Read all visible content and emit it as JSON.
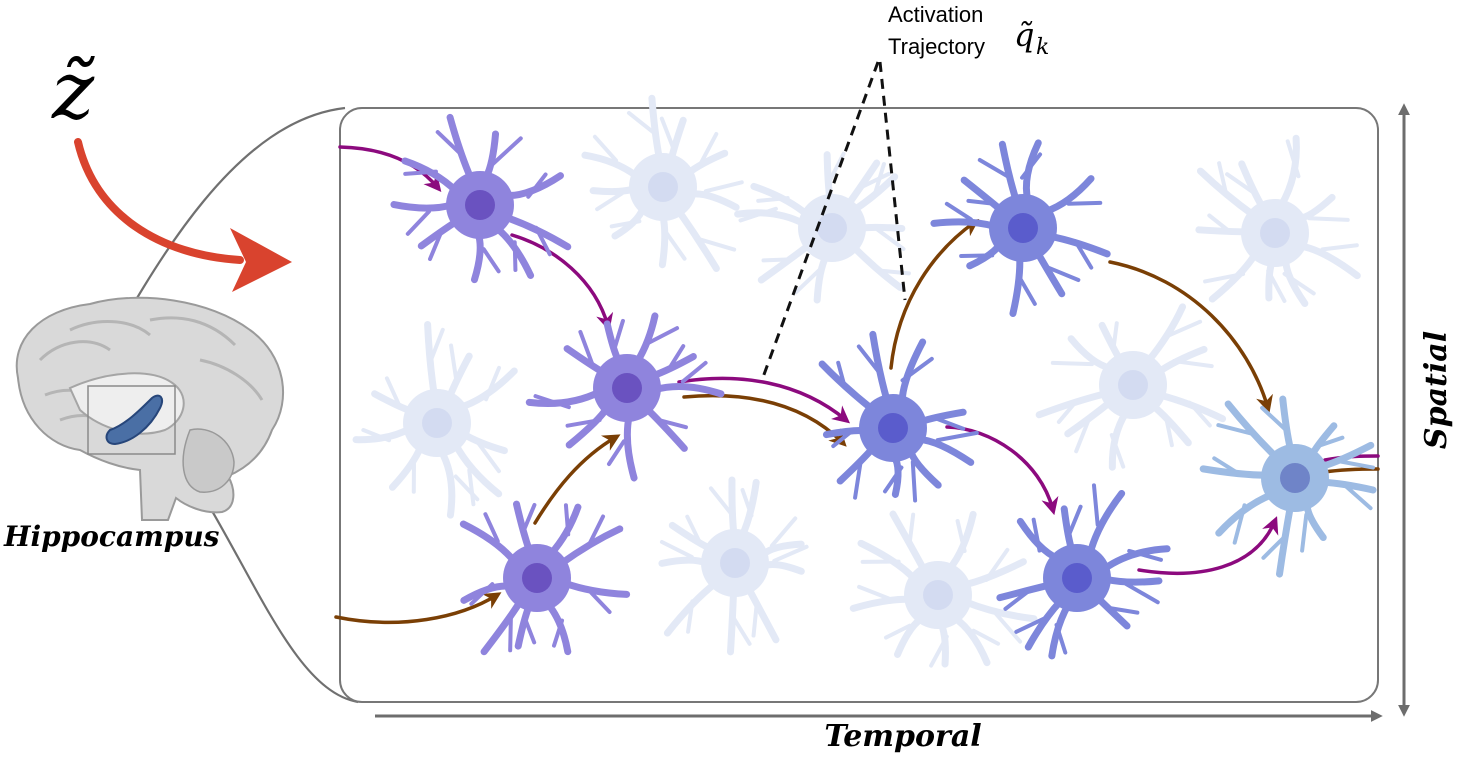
{
  "labels": {
    "latent": "z̃",
    "trajectory_line1": "Activation",
    "trajectory_line2": "Trajectory",
    "trajectory_symbol": "q̃",
    "trajectory_subscript": "k",
    "region": "Hippocampus",
    "x_axis": "Temporal",
    "y_axis": "Spatial"
  },
  "colors": {
    "active_neuron": "#8f84dd",
    "active_nucleus": "#6a52c0",
    "active_neuron_blue": "#7d86db",
    "active_nucleus_blue": "#5a5ccc",
    "end_neuron": "#9dbbe3",
    "end_nucleus": "#6f84c8",
    "faded_neuron": "#e3e9f6",
    "faded_nucleus": "#d3dbf1",
    "purple_arrow": "#8c0a7e",
    "brown_arrow": "#7a3f05",
    "input_arrow": "#d9432e",
    "frame": "#777777",
    "axis": "#6d6d6d",
    "brain": "#d9d9d9",
    "hippocampus": "#4a6fa5"
  },
  "neurons": [
    {
      "id": "n1",
      "kind": "active"
    },
    {
      "id": "n2",
      "kind": "active"
    },
    {
      "id": "n3",
      "kind": "active"
    },
    {
      "id": "n4",
      "kind": "active_blue"
    },
    {
      "id": "n5",
      "kind": "active_blue"
    },
    {
      "id": "n6",
      "kind": "active_blue"
    },
    {
      "id": "n7",
      "kind": "end"
    },
    {
      "id": "f1",
      "kind": "faded"
    },
    {
      "id": "f2",
      "kind": "faded"
    },
    {
      "id": "f3",
      "kind": "faded"
    },
    {
      "id": "f4",
      "kind": "faded"
    },
    {
      "id": "f5",
      "kind": "faded"
    },
    {
      "id": "f6",
      "kind": "faded"
    },
    {
      "id": "f7",
      "kind": "faded"
    }
  ],
  "arrows": [
    {
      "id": "a1",
      "color": "purple_arrow"
    },
    {
      "id": "a2",
      "color": "purple_arrow"
    },
    {
      "id": "a3",
      "color": "brown_arrow"
    },
    {
      "id": "a4",
      "color": "brown_arrow"
    },
    {
      "id": "a5",
      "color": "purple_arrow"
    },
    {
      "id": "a6",
      "color": "brown_arrow"
    },
    {
      "id": "a7",
      "color": "brown_arrow"
    },
    {
      "id": "a8",
      "color": "brown_arrow"
    },
    {
      "id": "a9",
      "color": "purple_arrow"
    },
    {
      "id": "a10",
      "color": "purple_arrow"
    },
    {
      "id": "a11",
      "color": "purple_arrow"
    },
    {
      "id": "a12",
      "color": "brown_arrow"
    }
  ]
}
